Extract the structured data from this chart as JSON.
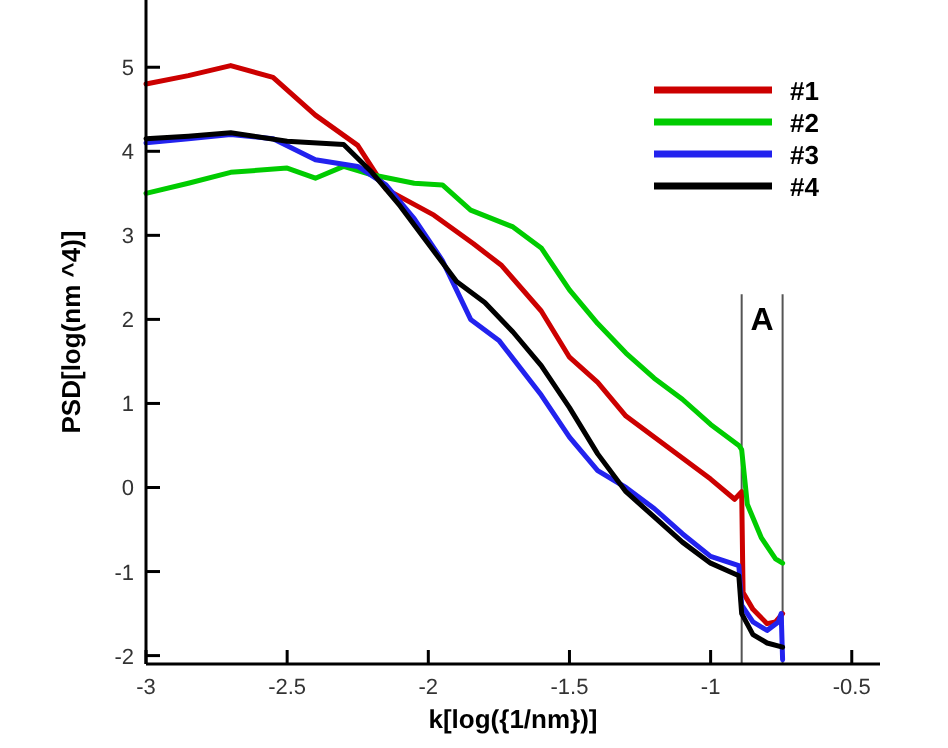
{
  "chart_data": {
    "type": "line",
    "xlabel": "k[log({1/nm})]",
    "ylabel": "PSD[log(nm ^4)]",
    "xlim": [
      -3,
      -0.4
    ],
    "xticks": [
      -3,
      -2.5,
      -2,
      -1.5,
      -1,
      -0.5
    ],
    "ylim": [
      -2.1,
      5.8
    ],
    "yticks": [
      -2,
      -1,
      0,
      1,
      2,
      3,
      4,
      5
    ],
    "legend": "top right",
    "grid": false,
    "marker": "none",
    "line_style": "solid",
    "ref_lines": [
      {
        "axis": "x",
        "value": -0.89,
        "color": "#555555"
      },
      {
        "axis": "x",
        "value": -0.745,
        "color": "#555555"
      }
    ],
    "annotations": [
      "A"
    ],
    "series": [
      {
        "name": "#1",
        "color": "#cc0000",
        "x": [
          -3,
          -2.85,
          -2.7,
          -2.55,
          -2.4,
          -2.25,
          -2.15,
          -1.98,
          -1.84,
          -1.74,
          -1.6,
          -1.5,
          -1.4,
          -1.3,
          -1.2,
          -1.1,
          -1.0,
          -0.915,
          -0.89,
          -0.885,
          -0.85,
          -0.8,
          -0.77,
          -0.745
        ],
        "values": [
          4.8,
          4.9,
          5.02,
          4.88,
          4.43,
          4.07,
          3.55,
          3.24,
          2.9,
          2.64,
          2.1,
          1.55,
          1.25,
          0.85,
          0.6,
          0.35,
          0.1,
          -0.14,
          -0.05,
          -1.25,
          -1.45,
          -1.62,
          -1.6,
          -1.5
        ]
      },
      {
        "name": "#2",
        "color": "#00cc00",
        "x": [
          -3,
          -2.85,
          -2.7,
          -2.5,
          -2.4,
          -2.3,
          -2.2,
          -2.05,
          -1.95,
          -1.85,
          -1.7,
          -1.6,
          -1.5,
          -1.4,
          -1.3,
          -1.2,
          -1.1,
          -1.0,
          -0.9,
          -0.89,
          -0.87,
          -0.82,
          -0.77,
          -0.745
        ],
        "values": [
          3.5,
          3.62,
          3.75,
          3.8,
          3.68,
          3.82,
          3.72,
          3.62,
          3.6,
          3.3,
          3.1,
          2.85,
          2.35,
          1.95,
          1.6,
          1.3,
          1.05,
          0.75,
          0.5,
          0.45,
          -0.2,
          -0.6,
          -0.85,
          -0.9
        ]
      },
      {
        "name": "#3",
        "color": "#2222ee",
        "x": [
          -3,
          -2.85,
          -2.7,
          -2.55,
          -2.4,
          -2.25,
          -2.15,
          -2.05,
          -1.95,
          -1.85,
          -1.75,
          -1.6,
          -1.5,
          -1.4,
          -1.3,
          -1.2,
          -1.1,
          -1.0,
          -0.9,
          -0.89,
          -0.85,
          -0.8,
          -0.76,
          -0.75,
          -0.745
        ],
        "values": [
          4.1,
          4.15,
          4.2,
          4.15,
          3.9,
          3.82,
          3.6,
          3.2,
          2.7,
          2.0,
          1.75,
          1.1,
          0.6,
          0.2,
          0.0,
          -0.25,
          -0.55,
          -0.82,
          -0.93,
          -1.4,
          -1.6,
          -1.7,
          -1.6,
          -1.5,
          -2.05
        ]
      },
      {
        "name": "#4",
        "color": "#000000",
        "x": [
          -3,
          -2.85,
          -2.7,
          -2.5,
          -2.3,
          -2.2,
          -2.1,
          -2.0,
          -1.9,
          -1.8,
          -1.7,
          -1.6,
          -1.5,
          -1.4,
          -1.3,
          -1.2,
          -1.1,
          -1.0,
          -0.9,
          -0.89,
          -0.85,
          -0.8,
          -0.745
        ],
        "values": [
          4.15,
          4.18,
          4.22,
          4.12,
          4.08,
          3.75,
          3.35,
          2.9,
          2.45,
          2.2,
          1.85,
          1.45,
          0.95,
          0.4,
          -0.05,
          -0.35,
          -0.65,
          -0.9,
          -1.05,
          -1.5,
          -1.75,
          -1.85,
          -1.9
        ]
      }
    ]
  }
}
